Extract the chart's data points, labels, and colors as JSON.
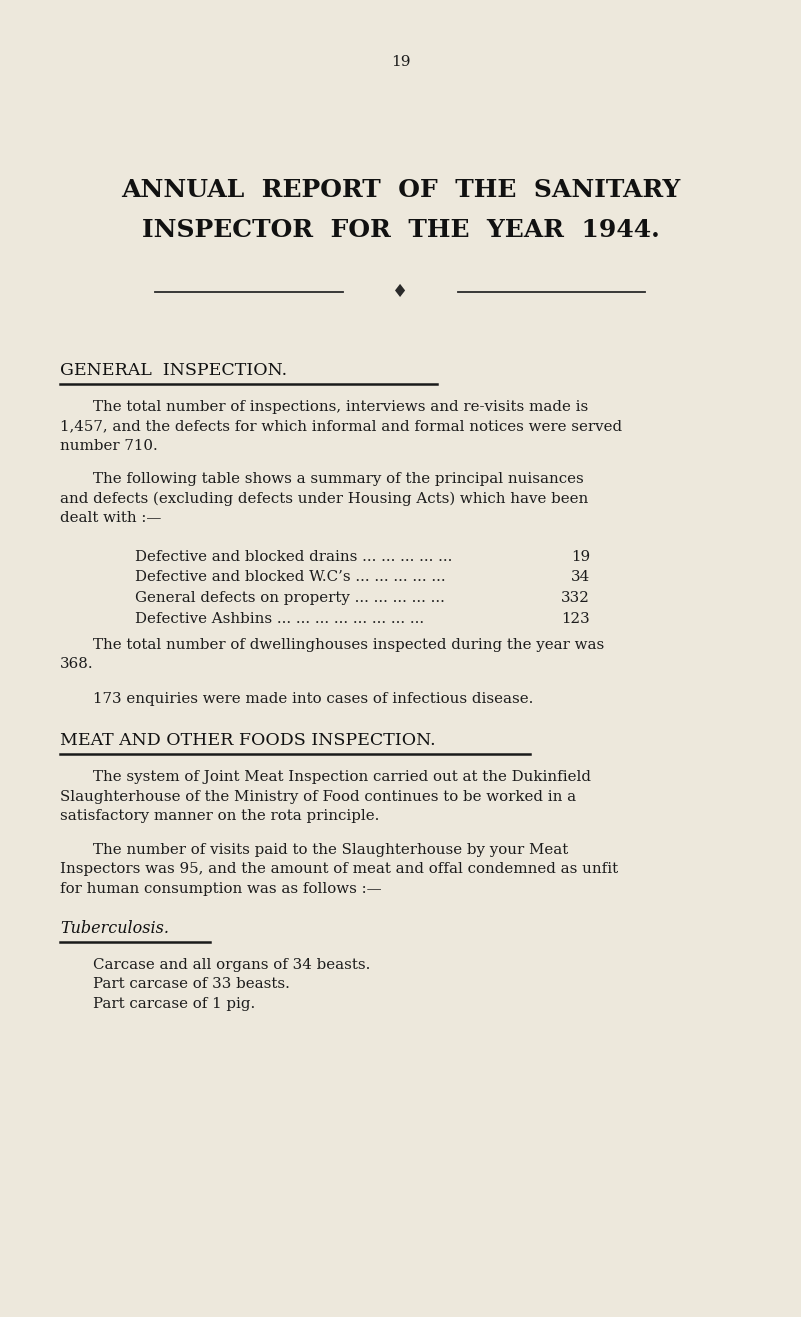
{
  "background_color": "#ede8dc",
  "page_number": "19",
  "title_line1": "ANNUAL  REPORT  OF  THE  SANITARY",
  "title_line2": "INSPECTOR  FOR  THE  YEAR  1944.",
  "section1_heading": "GENERAL  INSPECTION.",
  "para1_line1": "The total number of inspections, interviews and re-visits made is",
  "para1_line2": "1,457, and the defects for which informal and formal notices were served",
  "para1_line3": "number 710.",
  "para2_line1": "The following table shows a summary of the principal nuisances",
  "para2_line2": "and defects (excluding defects under Housing Acts) which have been",
  "para2_line3": "dealt with :—",
  "table_items": [
    [
      "Defective and blocked drains ... ... ... ... ...",
      "19"
    ],
    [
      "Defective and blocked W.C’s ... ... ... ... ...",
      "34"
    ],
    [
      "General defects on property ... ... ... ... ...",
      "332"
    ],
    [
      "Defective Ashbins ... ... ... ... ... ... ... ...",
      "123"
    ]
  ],
  "para3_line1": "The total number of dwellinghouses inspected during the year was",
  "para3_line2": "368.",
  "para4": "173 enquiries were made into cases of infectious disease.",
  "section2_heading": "MEAT AND OTHER FOODS INSPECTION.",
  "para5_line1": "The system of Joint Meat Inspection carried out at the Dukinfield",
  "para5_line2": "Slaughterhouse of the Ministry of Food continues to be worked in a",
  "para5_line3": "satisfactory manner on the rota principle.",
  "para6_line1": "The number of visits paid to the Slaughterhouse by your Meat",
  "para6_line2": "Inspectors was 95, and the amount of meat and offal condemned as unfit",
  "para6_line3": "for human consumption was as follows :—",
  "tuberculosis_heading": "Tuberculosis.",
  "tb_item1": "Carcase and all organs of 34 beasts.",
  "tb_item2": "Part carcase of 33 beasts.",
  "tb_item3": "Part carcase of 1 pig.",
  "text_color": "#1c1c1c",
  "heading_color": "#111111",
  "line_color": "#1a1a1a",
  "divider_color": "#2a2a2a",
  "fig_width": 8.01,
  "fig_height": 13.17,
  "dpi": 100
}
